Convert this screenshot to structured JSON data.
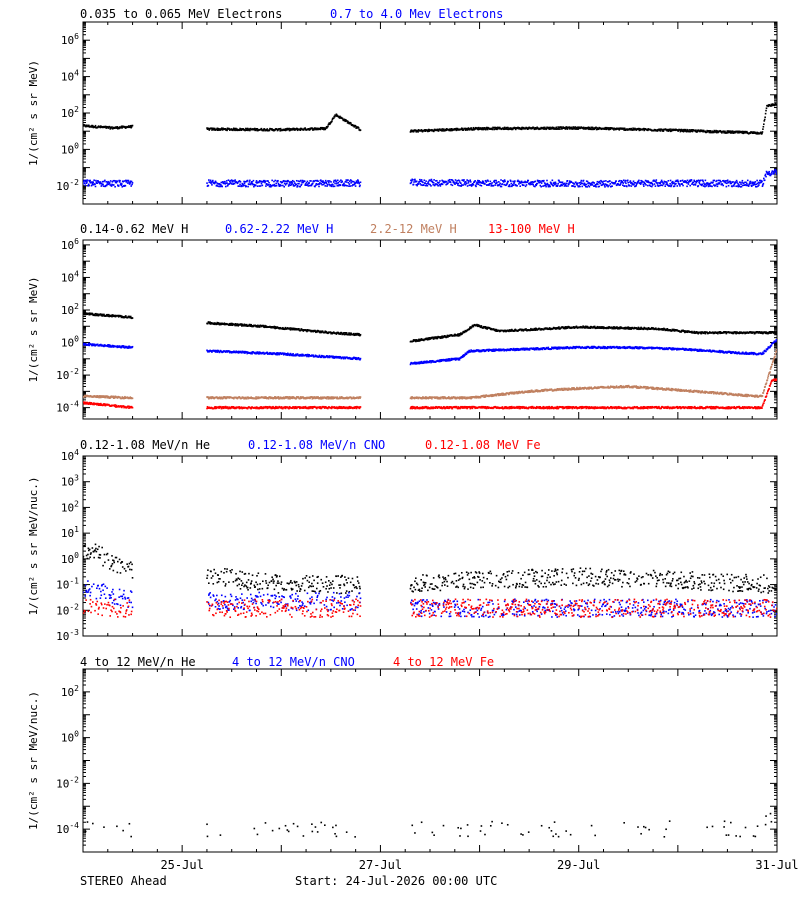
{
  "footer": {
    "spacecraft": "STEREO Ahead",
    "start": "Start: 24-Jul-2026 00:00 UTC"
  },
  "x_axis": {
    "range_days": [
      0,
      7
    ],
    "tick_labels": [
      "25-Jul",
      "27-Jul",
      "29-Jul",
      "31-Jul"
    ],
    "tick_days": [
      1,
      3,
      5,
      7
    ]
  },
  "chart_data": [
    {
      "type": "scatter",
      "ylabel": "1/(cm² s sr MeV)",
      "yscale": "log",
      "ylim": [
        0.001,
        10000000
      ],
      "y_tick_labels": [
        "10^-2",
        "10^0",
        "10^2",
        "10^4",
        "10^6"
      ],
      "data_gaps_days": [
        [
          0.5,
          1.25
        ],
        [
          2.8,
          3.3
        ]
      ],
      "series": [
        {
          "name": "0.035 to 0.065 MeV Electrons",
          "color": "#000000",
          "x": [
            0.0,
            0.3,
            0.5,
            1.25,
            2.0,
            2.45,
            2.55,
            2.8,
            3.3,
            4.0,
            5.0,
            6.0,
            6.8,
            6.85,
            6.9,
            7.0
          ],
          "y": [
            20,
            15,
            18,
            13,
            12,
            14,
            80,
            12,
            10,
            14,
            15,
            11,
            8,
            8,
            250,
            300
          ]
        },
        {
          "name": "0.7 to 4.0 Mev Electrons",
          "color": "#0000ff",
          "x": [
            0.0,
            0.5,
            1.25,
            2.0,
            2.8,
            3.3,
            4.0,
            5.0,
            6.0,
            6.8,
            6.85,
            6.9,
            7.0
          ],
          "y": [
            0.014,
            0.013,
            0.014,
            0.013,
            0.014,
            0.015,
            0.014,
            0.013,
            0.014,
            0.013,
            0.013,
            0.05,
            0.06
          ]
        }
      ]
    },
    {
      "type": "scatter",
      "ylabel": "1/(cm² s sr MeV)",
      "yscale": "log",
      "ylim": [
        2e-05,
        2000000
      ],
      "y_tick_labels": [
        "10^-4",
        "10^-2",
        "10^0",
        "10^2",
        "10^4",
        "10^6"
      ],
      "data_gaps_days": [
        [
          0.5,
          1.25
        ],
        [
          2.8,
          3.3
        ]
      ],
      "series": [
        {
          "name": "0.14-0.62 MeV H",
          "color": "#000000",
          "x": [
            0.0,
            0.5,
            1.25,
            1.8,
            2.5,
            2.8,
            3.3,
            3.8,
            3.95,
            4.2,
            5.0,
            5.8,
            6.2,
            7.0
          ],
          "y": [
            60,
            35,
            16,
            10,
            4,
            3,
            1.2,
            3,
            12,
            5,
            9,
            7,
            4,
            4
          ]
        },
        {
          "name": "0.62-2.22 MeV H",
          "color": "#0000ff",
          "x": [
            0.0,
            0.5,
            1.25,
            2.0,
            2.8,
            3.3,
            3.8,
            3.9,
            4.5,
            5.0,
            5.5,
            6.0,
            6.8,
            6.85,
            7.0
          ],
          "y": [
            0.8,
            0.5,
            0.3,
            0.2,
            0.1,
            0.05,
            0.1,
            0.3,
            0.4,
            0.5,
            0.5,
            0.4,
            0.2,
            0.2,
            1.5
          ]
        },
        {
          "name": "2.2-12 MeV H",
          "color": "#c08060",
          "x": [
            0.0,
            0.5,
            1.25,
            2.8,
            3.3,
            3.9,
            4.5,
            5.0,
            5.5,
            6.0,
            6.8,
            6.85,
            7.0
          ],
          "y": [
            0.0005,
            0.0004,
            0.0004,
            0.0004,
            0.0004,
            0.0004,
            0.001,
            0.0015,
            0.002,
            0.0012,
            0.0005,
            0.0005,
            0.4
          ]
        },
        {
          "name": "13-100 MeV H",
          "color": "#ff0000",
          "x": [
            0.0,
            0.5,
            1.25,
            2.8,
            3.3,
            6.8,
            6.85,
            6.95,
            7.0
          ],
          "y": [
            0.0002,
            0.0001,
            0.0001,
            0.0001,
            0.0001,
            0.0001,
            0.0001,
            0.005,
            0.005
          ]
        }
      ]
    },
    {
      "type": "scatter",
      "ylabel": "1/(cm² s sr MeV/nuc.)",
      "yscale": "log",
      "ylim": [
        0.001,
        10000
      ],
      "y_tick_labels": [
        "10^-3",
        "10^-2",
        "10^-1",
        "10^0",
        "10^1",
        "10^2",
        "10^3",
        "10^4"
      ],
      "data_gaps_days": [
        [
          0.5,
          1.25
        ],
        [
          2.8,
          3.3
        ]
      ],
      "series": [
        {
          "name": "0.12-1.08 MeV/n He",
          "color": "#000000",
          "x": [
            0.0,
            0.1,
            0.3,
            0.5,
            1.25,
            1.6,
            2.0,
            2.8,
            3.3,
            4.0,
            5.0,
            6.0,
            7.0
          ],
          "y": [
            1.5,
            2.5,
            0.6,
            0.4,
            0.25,
            0.15,
            0.1,
            0.1,
            0.1,
            0.15,
            0.2,
            0.15,
            0.1
          ]
        },
        {
          "name": "0.12-1.08 MeV/n CNO",
          "color": "#0000ff",
          "x": [
            0.0,
            0.5,
            1.25,
            2.8,
            3.3,
            7.0
          ],
          "y": [
            0.08,
            0.025,
            0.022,
            0.022,
            0.012,
            0.012
          ]
        },
        {
          "name": "0.12-1.08 MeV Fe",
          "color": "#ff0000",
          "x": [
            0.0,
            0.5,
            1.25,
            2.8,
            3.3,
            7.0
          ],
          "y": [
            0.012,
            0.012,
            0.012,
            0.012,
            0.012,
            0.012
          ]
        }
      ]
    },
    {
      "type": "scatter",
      "ylabel": "1/(cm² s sr MeV/nuc.)",
      "yscale": "log",
      "ylim": [
        1e-05,
        1000
      ],
      "y_tick_labels": [
        "10^-4",
        "10^-2",
        "10^0",
        "10^2"
      ],
      "data_gaps_days": [
        [
          0.5,
          1.25
        ],
        [
          2.8,
          3.3
        ]
      ],
      "series": [
        {
          "name": "4 to 12 MeV/n He",
          "color": "#000000",
          "x": [
            0.0,
            0.5,
            1.25,
            2.8,
            3.3,
            6.5,
            6.85,
            6.95,
            7.0
          ],
          "y": [
            0.0001,
            0.0001,
            0.0001,
            0.0001,
            0.0001,
            0.0001,
            0.0001,
            0.0004,
            0.001
          ]
        },
        {
          "name": "4 to 12 MeV/n CNO",
          "color": "#0000ff",
          "x": [],
          "y": []
        },
        {
          "name": "4 to 12 MeV Fe",
          "color": "#ff0000",
          "x": [],
          "y": []
        }
      ]
    }
  ]
}
